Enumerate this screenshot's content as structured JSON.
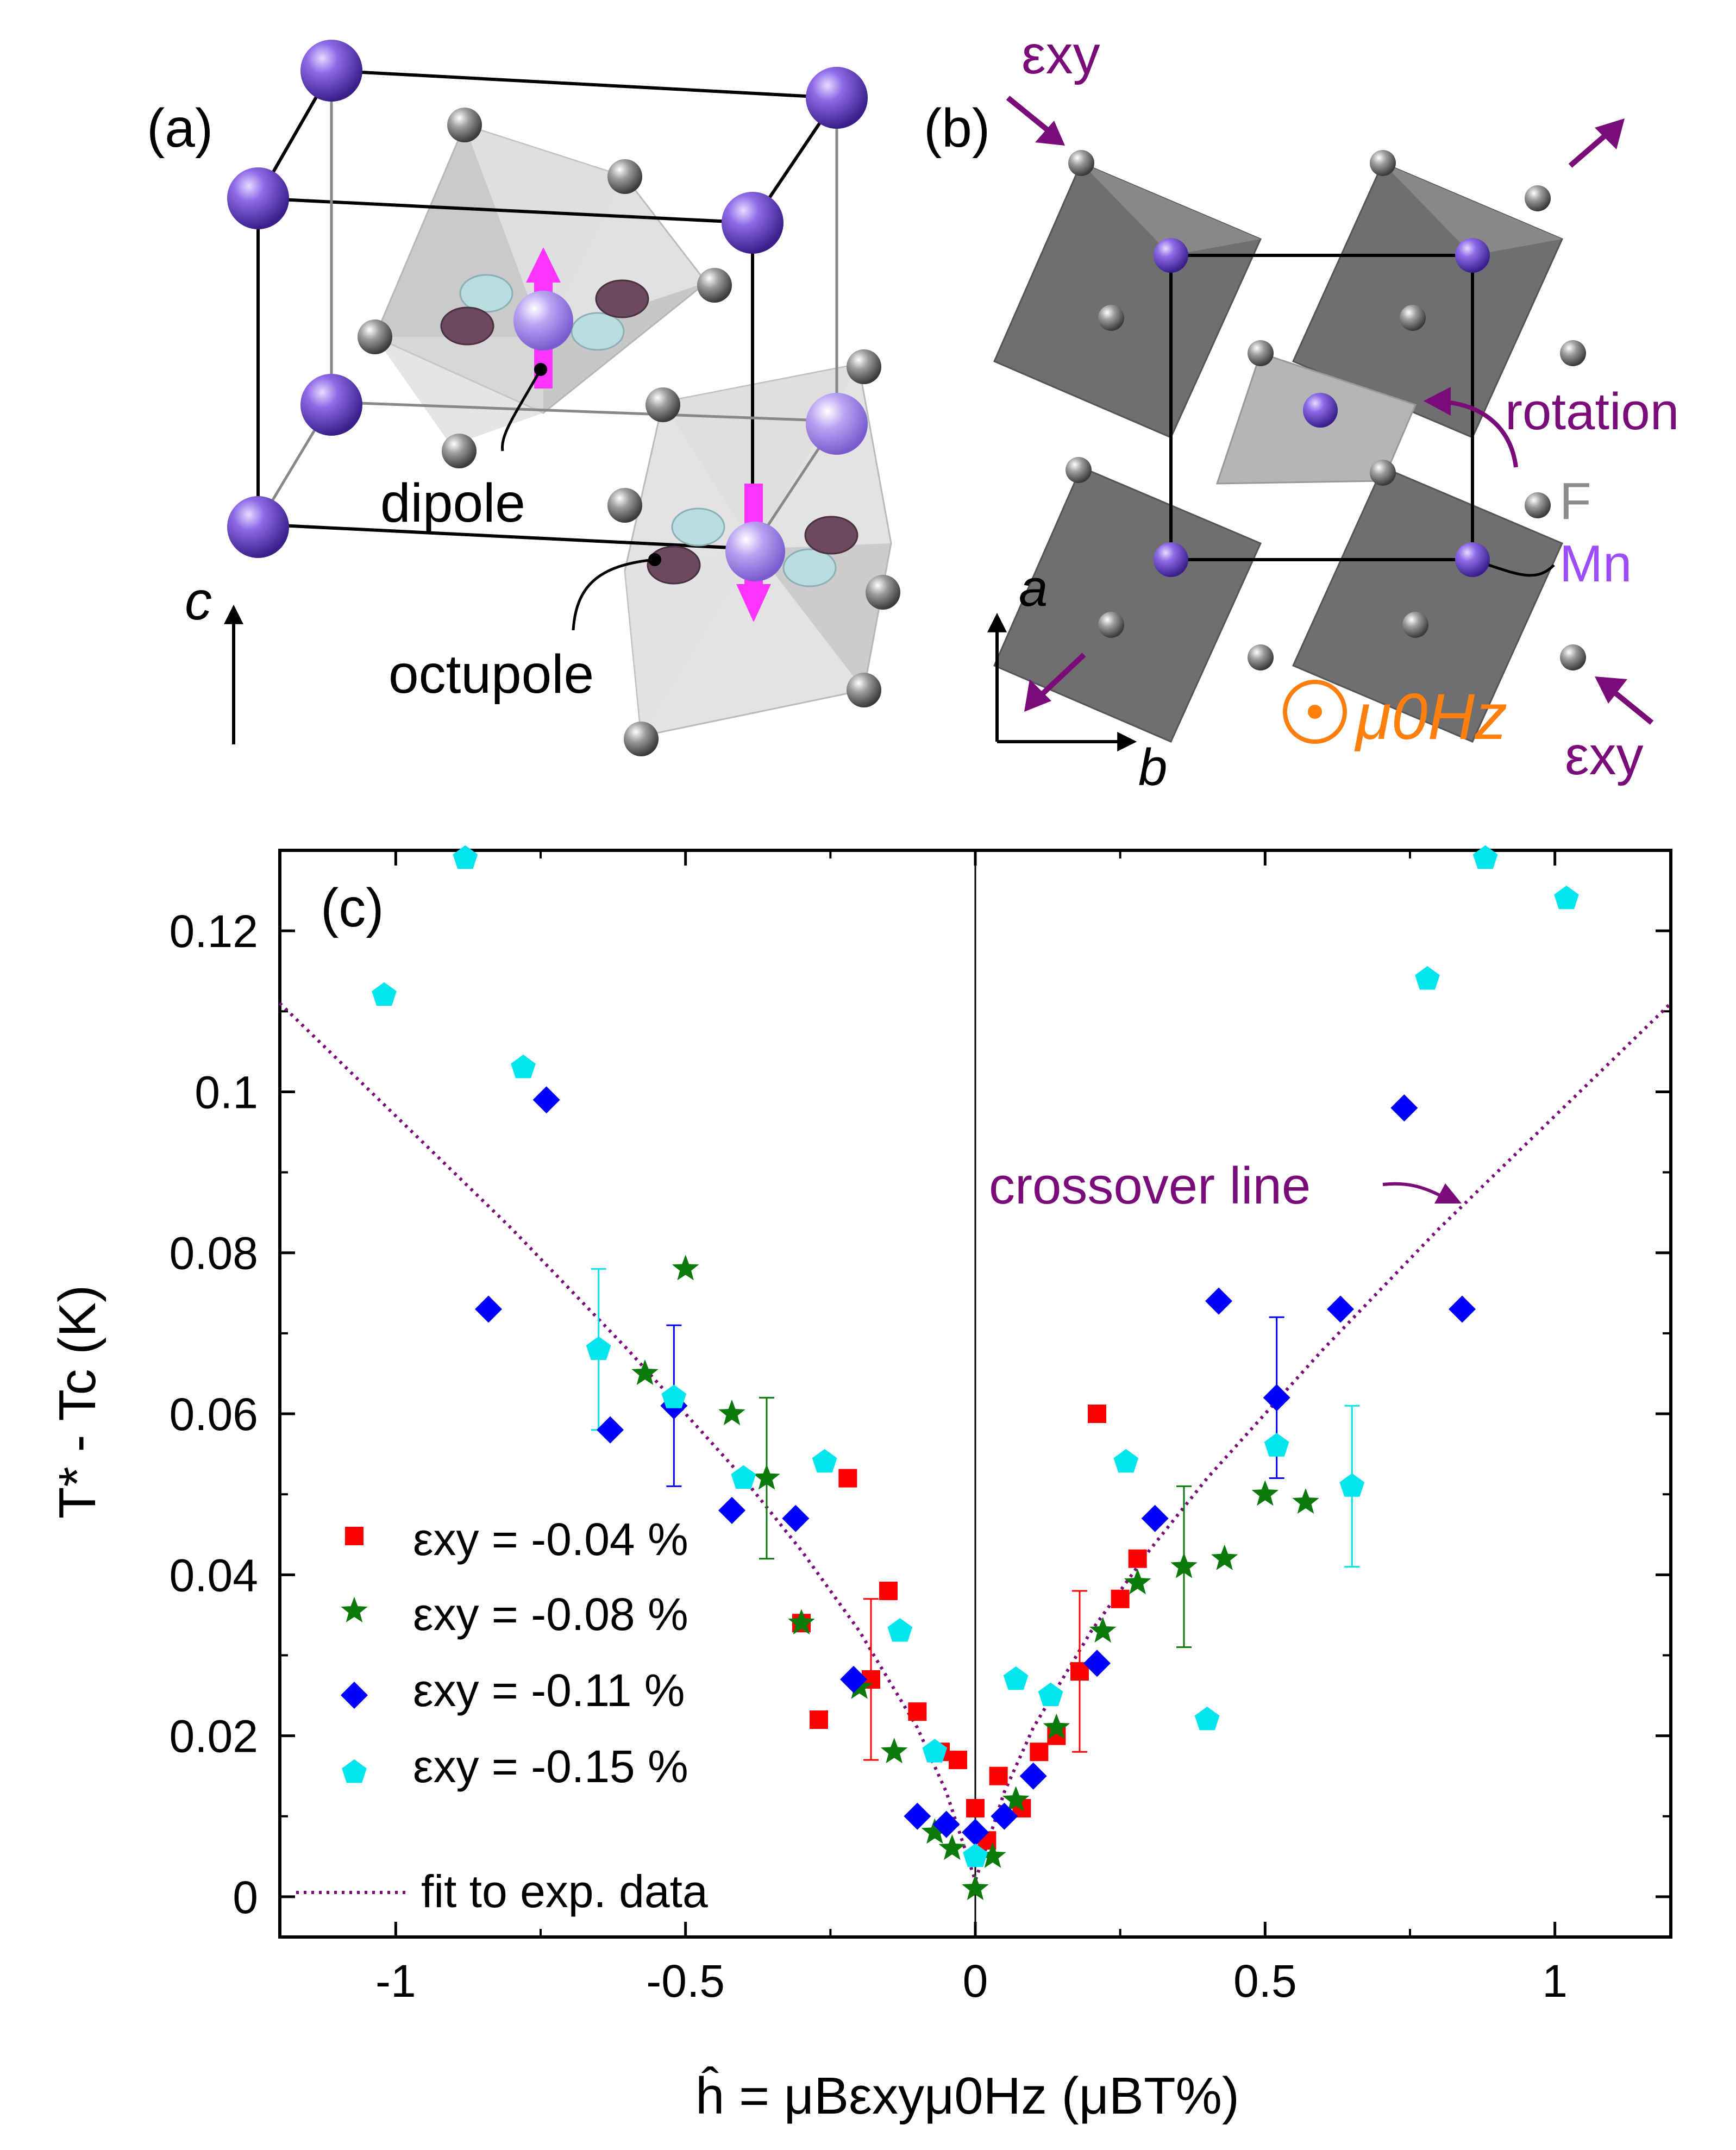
{
  "panel_a": {
    "label": "(a)",
    "dipole_label": "dipole",
    "octupole_label": "octupole",
    "axis_label": "c"
  },
  "panel_b": {
    "label": "(b)",
    "strain_top": "εxy",
    "strain_bottom": "εxy",
    "rotation_label": "rotation",
    "F_label": "F",
    "Mn_label": "Mn",
    "axis_a": "a",
    "axis_b": "b",
    "field_label": "μ0Hz"
  },
  "colors": {
    "mn": "#7b52d9",
    "f": "#8c8c8c",
    "octahedron": "#808080",
    "arrow": "#7a0c7a",
    "field": "#ff7f0e",
    "dipole": "#ff33ff",
    "red": "#ff0000",
    "green": "#0b7a0b",
    "blue": "#0000ff",
    "cyan": "#00e5ee",
    "fit": "#7a0c7a"
  },
  "chart_data": {
    "type": "scatter",
    "panel_label": "(c)",
    "xlabel": "ĥ = μBεxyμ0Hz (μBT%)",
    "ylabel": "T* - Tc (K)",
    "xlim": [
      -1.2,
      1.2
    ],
    "ylim": [
      -0.005,
      0.13
    ],
    "xticks": [
      -1,
      -0.5,
      0,
      0.5,
      1
    ],
    "xtick_labels": [
      "-1",
      "-0.5",
      "0",
      "0.5",
      "1"
    ],
    "yticks": [
      0,
      0.02,
      0.04,
      0.06,
      0.08,
      0.1,
      0.12
    ],
    "ytick_labels": [
      "0",
      "0.02",
      "0.04",
      "0.06",
      "0.08",
      "0.1",
      "0.12"
    ],
    "annotation": "crossover line",
    "fit_label": "fit to exp. data",
    "fit_curve": {
      "x": [
        -1.2,
        -1.0,
        -0.8,
        -0.6,
        -0.4,
        -0.3,
        -0.2,
        -0.1,
        -0.05,
        0.0,
        0.05,
        0.1,
        0.2,
        0.3,
        0.4,
        0.6,
        0.8,
        1.0,
        1.2
      ],
      "y": [
        0.111,
        0.097,
        0.083,
        0.068,
        0.052,
        0.043,
        0.033,
        0.021,
        0.013,
        0.002,
        0.013,
        0.021,
        0.033,
        0.043,
        0.052,
        0.068,
        0.083,
        0.097,
        0.111
      ]
    },
    "series": [
      {
        "name": "εxy = -0.04 %",
        "marker": "square",
        "color": "#ff0000",
        "x": [
          -0.22,
          -0.27,
          -0.3,
          -0.18,
          -0.15,
          -0.1,
          -0.06,
          -0.03,
          0.0,
          0.02,
          0.04,
          0.08,
          0.11,
          0.14,
          0.18,
          0.21,
          0.25,
          0.28
        ],
        "y": [
          0.052,
          0.022,
          0.034,
          0.027,
          0.038,
          0.023,
          0.018,
          0.017,
          0.011,
          0.007,
          0.015,
          0.011,
          0.018,
          0.02,
          0.028,
          0.06,
          0.037,
          0.042
        ],
        "error_bars": [
          {
            "x": -0.18,
            "y": 0.027,
            "err": 0.01
          },
          {
            "x": 0.18,
            "y": 0.028,
            "err": 0.01
          }
        ]
      },
      {
        "name": "εxy = -0.08 %",
        "marker": "star",
        "color": "#0b7a0b",
        "x": [
          -0.5,
          -0.42,
          -0.57,
          -0.36,
          -0.3,
          -0.2,
          -0.14,
          -0.07,
          -0.04,
          0.0,
          0.03,
          0.07,
          0.14,
          0.22,
          0.28,
          0.36,
          0.43,
          0.5,
          0.57
        ],
        "y": [
          0.078,
          0.06,
          0.065,
          0.052,
          0.034,
          0.026,
          0.018,
          0.008,
          0.006,
          0.001,
          0.005,
          0.012,
          0.021,
          0.033,
          0.039,
          0.041,
          0.042,
          0.05,
          0.049
        ],
        "error_bars": [
          {
            "x": -0.36,
            "y": 0.052,
            "err": 0.01
          },
          {
            "x": 0.36,
            "y": 0.041,
            "err": 0.01
          }
        ]
      },
      {
        "name": "εxy = -0.11 %",
        "marker": "diamond",
        "color": "#0000ff",
        "x": [
          -0.84,
          -0.74,
          -0.63,
          -0.52,
          -0.42,
          -0.31,
          -0.21,
          -0.1,
          -0.05,
          0.0,
          0.05,
          0.1,
          0.21,
          0.31,
          0.42,
          0.52,
          0.63,
          0.74,
          0.84
        ],
        "y": [
          0.073,
          0.099,
          0.058,
          0.061,
          0.048,
          0.047,
          0.027,
          0.01,
          0.009,
          0.008,
          0.01,
          0.015,
          0.029,
          0.047,
          0.074,
          0.062,
          0.073,
          0.098,
          0.073
        ],
        "error_bars": [
          {
            "x": -0.52,
            "y": 0.061,
            "err": 0.01
          },
          {
            "x": 0.52,
            "y": 0.062,
            "err": 0.01
          }
        ]
      },
      {
        "name": "εxy = -0.15 %",
        "marker": "pentagon",
        "color": "#00e5ee",
        "x": [
          -1.02,
          -0.88,
          -0.78,
          -0.65,
          -0.52,
          -0.4,
          -0.26,
          -0.13,
          -0.07,
          0.0,
          0.07,
          0.13,
          0.26,
          0.4,
          0.52,
          0.65,
          0.78,
          0.88,
          1.02
        ],
        "y": [
          0.112,
          0.129,
          0.103,
          0.068,
          0.062,
          0.052,
          0.054,
          0.033,
          0.018,
          0.005,
          0.027,
          0.025,
          0.054,
          0.022,
          0.056,
          0.051,
          0.114,
          0.129,
          0.124
        ],
        "error_bars": [
          {
            "x": -0.65,
            "y": 0.068,
            "err": 0.01
          },
          {
            "x": 0.65,
            "y": 0.051,
            "err": 0.01
          }
        ]
      }
    ]
  }
}
